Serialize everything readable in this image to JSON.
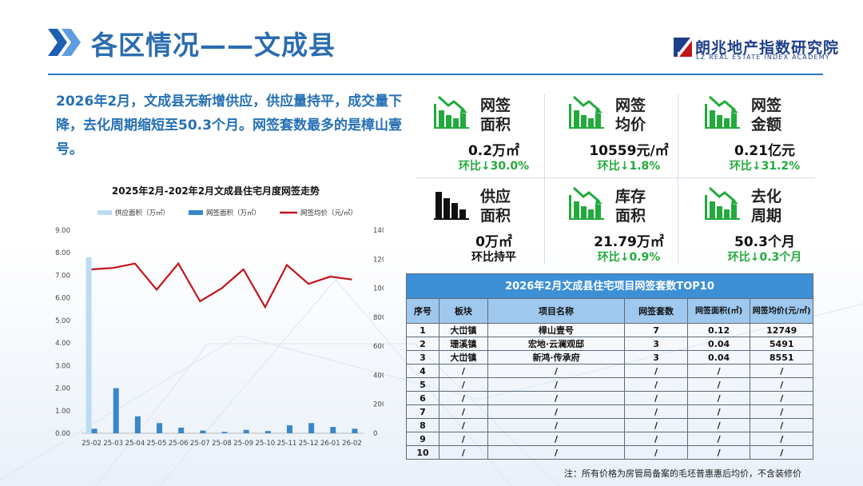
{
  "header": {
    "title": "各区情况——文成县",
    "logo_cn": "朗兆地产指数研究院",
    "logo_en": "LZ REAL ESTATE INDEX ACADEMY"
  },
  "summary": "2026年2月，文成县无新增供应，供应量持平，成交量下降，去化周期缩短至50.3个月。网签套数最多的是樟山壹号。",
  "kpis": [
    {
      "label": "网签面积",
      "value": "0.2万㎡",
      "change": "环比↓30.0%",
      "icon": "down-trend-bar-icon",
      "color": "#22aa3c"
    },
    {
      "label": "网签均价",
      "value": "10559元/㎡",
      "change": "环比↓1.8%",
      "icon": "down-trend-bar-icon",
      "color": "#22aa3c"
    },
    {
      "label": "网签金额",
      "value": "0.21亿元",
      "change": "环比↓31.2%",
      "icon": "down-trend-bar-icon",
      "color": "#22aa3c"
    },
    {
      "label": "供应面积",
      "value": "0万㎡",
      "change": "环比持平",
      "icon": "flat-bar-icon",
      "color": "#111111"
    },
    {
      "label": "库存面积",
      "value": "21.79万㎡",
      "change": "环比↓0.9%",
      "icon": "down-trend-bar-icon",
      "color": "#22aa3c"
    },
    {
      "label": "去化周期",
      "value": "50.3个月",
      "change": "环比↓0.3个月",
      "icon": "down-trend-bar-icon",
      "color": "#22aa3c"
    }
  ],
  "table": {
    "title": "2026年2月文成县住宅项目网签套数TOP10",
    "headers": [
      "序号",
      "板块",
      "项目名称",
      "网签套数",
      "网签面积(㎡)",
      "网签均价(元/㎡)"
    ],
    "rows": [
      [
        "1",
        "大峃镇",
        "樟山壹号",
        "7",
        "0.12",
        "12749"
      ],
      [
        "2",
        "珊溪镇",
        "宏地·云澜观邸",
        "3",
        "0.04",
        "5491"
      ],
      [
        "3",
        "大峃镇",
        "新鸿·传承府",
        "3",
        "0.04",
        "8551"
      ],
      [
        "4",
        "/",
        "/",
        "/",
        "/",
        "/"
      ],
      [
        "5",
        "/",
        "/",
        "/",
        "/",
        "/"
      ],
      [
        "6",
        "/",
        "/",
        "/",
        "/",
        "/"
      ],
      [
        "7",
        "/",
        "/",
        "/",
        "/",
        "/"
      ],
      [
        "8",
        "/",
        "/",
        "/",
        "/",
        "/"
      ],
      [
        "9",
        "/",
        "/",
        "/",
        "/",
        "/"
      ],
      [
        "10",
        "/",
        "/",
        "/",
        "/",
        "/"
      ]
    ]
  },
  "note": "注：所有价格为房管局备案的毛坯普惠惠后均价，不含装修价",
  "chart_data": {
    "type": "bar",
    "title": "2025年2月-202年2月文成县住宅月度网签走势",
    "categories": [
      "25-02",
      "25-03",
      "25-04",
      "25-05",
      "25-06",
      "25-07",
      "25-08",
      "25-09",
      "25-10",
      "25-11",
      "25-12",
      "26-01",
      "26-02"
    ],
    "series": [
      {
        "name": "供应面积（万㎡）",
        "type": "bar",
        "axis": "left",
        "color": "#bcdcf4",
        "values": [
          7.8,
          0,
          0,
          0,
          0,
          0,
          0,
          0,
          0,
          0,
          0,
          0,
          0
        ]
      },
      {
        "name": "网签面积（万㎡）",
        "type": "bar",
        "axis": "left",
        "color": "#3a86c8",
        "values": [
          0.2,
          2.0,
          0.75,
          0.45,
          0.25,
          0.12,
          0.06,
          0.15,
          0.1,
          0.35,
          0.45,
          0.28,
          0.2
        ]
      },
      {
        "name": "网签均价（元/㎡）",
        "type": "line",
        "axis": "right",
        "color": "#c0161c",
        "values": [
          11300,
          11400,
          11700,
          9900,
          11700,
          9100,
          10000,
          11300,
          8700,
          11600,
          10300,
          10800,
          10600
        ]
      }
    ],
    "ylim_left": [
      0,
      9
    ],
    "yticks_left": [
      "0.00",
      "1.00",
      "2.00",
      "3.00",
      "4.00",
      "5.00",
      "6.00",
      "7.00",
      "8.00",
      "9.00"
    ],
    "ylim_right": [
      0,
      14000
    ],
    "yticks_right": [
      "0",
      "2000",
      "4000",
      "6000",
      "8000",
      "10000",
      "12000",
      "14000"
    ],
    "legend": "top"
  }
}
